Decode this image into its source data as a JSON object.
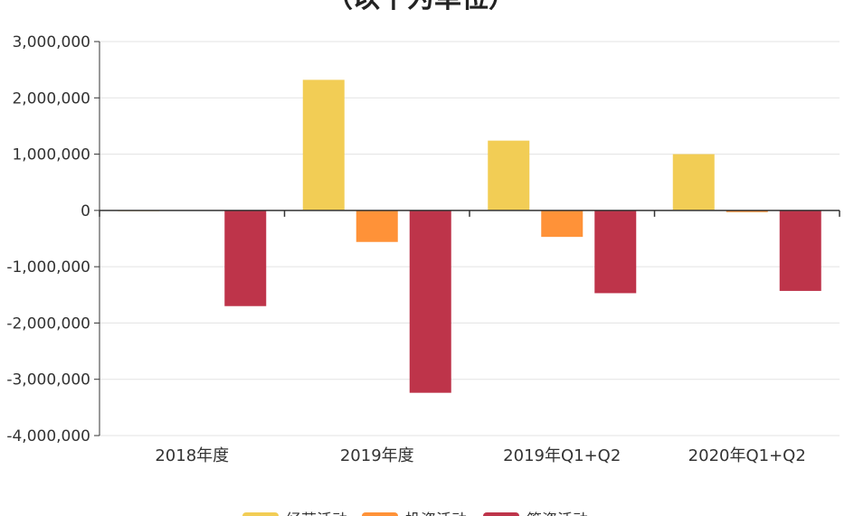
{
  "chart_data": {
    "type": "bar",
    "title": "（以千为单位）",
    "categories": [
      "2018年度",
      "2019年度",
      "2019年Q1+Q2",
      "2020年Q1+Q2"
    ],
    "series": [
      {
        "name": "经营活动",
        "color": "#F2CD55",
        "values": [
          3000,
          2320000,
          1240000,
          1000000
        ]
      },
      {
        "name": "投资活动",
        "color": "#FF9238",
        "values": [
          0,
          -560000,
          -470000,
          -30000
        ]
      },
      {
        "name": "筹资活动",
        "color": "#BE344A",
        "values": [
          -1700000,
          -3240000,
          -1470000,
          -1430000
        ]
      }
    ],
    "ylim": [
      -4000000,
      3000000
    ],
    "yticks": [
      3000000,
      2000000,
      1000000,
      0,
      -1000000,
      -2000000,
      -3000000,
      -4000000
    ],
    "ytick_labels": [
      "3,000,000",
      "2,000,000",
      "1,000,000",
      "0",
      "-1,000,000",
      "-2,000,000",
      "-3,000,000",
      "-4,000,000"
    ],
    "grid": true,
    "legend_position": "bottom"
  }
}
